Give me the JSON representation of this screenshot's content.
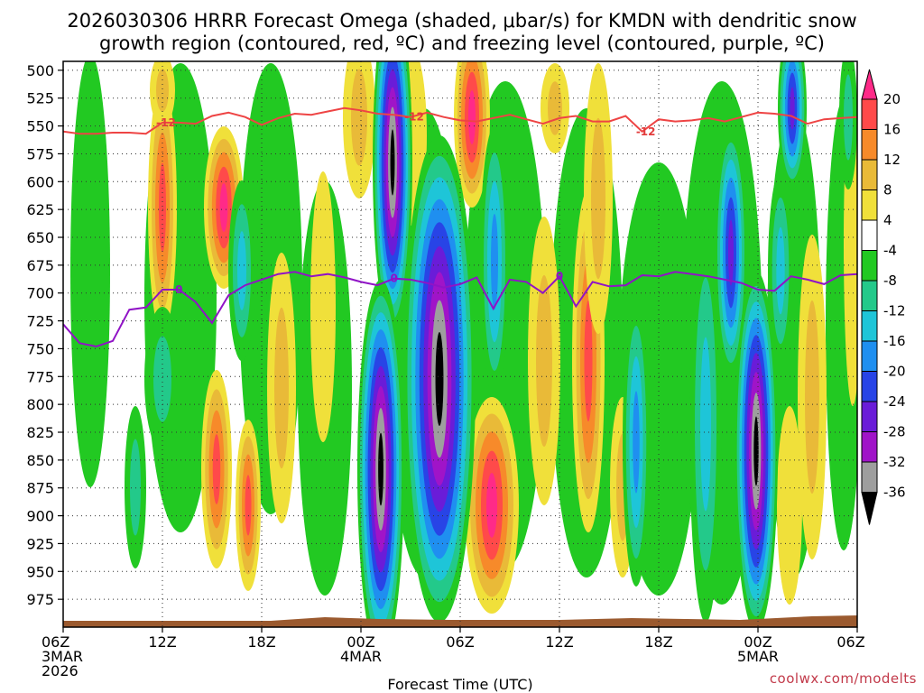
{
  "chart_data": {
    "type": "heatmap",
    "title_line1": "2026030306 HRRR Forecast Omega (shaded, μbar/s) for KMDN with dendritic snow",
    "title_line2": "growth region (contoured, red, ºC) and freezing level (contoured, purple, ºC)",
    "xlabel": "Forecast Time (UTC)",
    "credit": "coolwx.com/modelts",
    "y_axis": {
      "label": "",
      "ticks": [
        500,
        525,
        550,
        575,
        600,
        625,
        650,
        675,
        700,
        725,
        750,
        775,
        800,
        825,
        850,
        875,
        900,
        925,
        950,
        975
      ],
      "ylim": [
        492,
        1000
      ],
      "inverted": true
    },
    "x_axis": {
      "xlim": [
        0,
        48
      ],
      "ticks": [
        {
          "h": 0,
          "lines": [
            "06Z",
            "3MAR",
            "2026"
          ]
        },
        {
          "h": 6,
          "lines": [
            "12Z"
          ]
        },
        {
          "h": 12,
          "lines": [
            "18Z"
          ]
        },
        {
          "h": 18,
          "lines": [
            "00Z",
            "4MAR"
          ]
        },
        {
          "h": 24,
          "lines": [
            "06Z"
          ]
        },
        {
          "h": 30,
          "lines": [
            "12Z"
          ]
        },
        {
          "h": 36,
          "lines": [
            "18Z"
          ]
        },
        {
          "h": 42,
          "lines": [
            "00Z",
            "5MAR"
          ]
        },
        {
          "h": 48,
          "lines": [
            "06Z"
          ]
        }
      ]
    },
    "grid": true,
    "colorbar": {
      "labels": [
        "20",
        "16",
        "12",
        "8",
        "4",
        "-4",
        "-8",
        "-12",
        "-16",
        "-20",
        "-24",
        "-28",
        "-32",
        "-36"
      ],
      "colors": [
        "#ff2a88",
        "#ff4a4a",
        "#f78a2a",
        "#e9ba38",
        "#f0e03a",
        "#ffffff",
        "#22c922",
        "#23c98a",
        "#1ec5d8",
        "#1f8ff0",
        "#2844e6",
        "#6a1cd8",
        "#a014c8",
        "#9e9e9e",
        "#000000"
      ]
    },
    "series": [
      {
        "name": "-12",
        "color": "#ee4444",
        "x": [
          0,
          1,
          2,
          3,
          4,
          5,
          6,
          7,
          8,
          9,
          10,
          11,
          12,
          13,
          14,
          15,
          16,
          17,
          18,
          19,
          20,
          21,
          22,
          23,
          24,
          25,
          26,
          27,
          28,
          29,
          30,
          31,
          32,
          33,
          34,
          35,
          36,
          37,
          38,
          39,
          40,
          41,
          42,
          43,
          44,
          45,
          46,
          47,
          48
        ],
        "y": [
          555,
          557,
          557,
          556,
          556,
          557,
          547,
          547,
          548,
          541,
          538,
          542,
          549,
          543,
          539,
          540,
          537,
          534,
          536,
          539,
          540,
          542,
          538,
          542,
          545,
          546,
          543,
          540,
          544,
          548,
          543,
          541,
          546,
          546,
          541,
          555,
          544,
          546,
          545,
          543,
          546,
          542,
          538,
          539,
          541,
          548,
          544,
          543,
          542
        ]
      },
      {
        "name": "0",
        "color": "#9013c6",
        "x": [
          0,
          1,
          2,
          3,
          4,
          5,
          6,
          7,
          8,
          9,
          10,
          11,
          12,
          13,
          14,
          15,
          16,
          17,
          18,
          19,
          20,
          21,
          22,
          23,
          24,
          25,
          26,
          27,
          28,
          29,
          30,
          31,
          32,
          33,
          34,
          35,
          36,
          37,
          38,
          39,
          40,
          41,
          42,
          43,
          44,
          45,
          46,
          47,
          48
        ],
        "y": [
          728,
          745,
          748,
          743,
          715,
          713,
          697,
          697,
          708,
          727,
          702,
          693,
          688,
          683,
          681,
          685,
          683,
          686,
          690,
          693,
          687,
          688,
          691,
          695,
          692,
          686,
          714,
          688,
          690,
          700,
          685,
          712,
          690,
          694,
          693,
          684,
          685,
          681,
          683,
          685,
          688,
          691,
          697,
          698,
          685,
          688,
          692,
          684,
          683
        ]
      }
    ]
  }
}
